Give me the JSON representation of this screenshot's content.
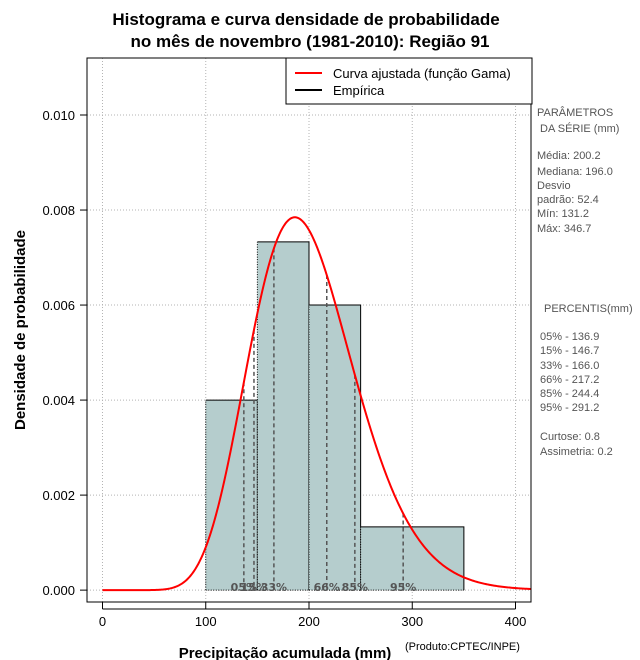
{
  "chart_data": {
    "type": "histogram",
    "title_line1": "Histograma e curva densidade de probabilidade",
    "title_line2": "no mês de novembro (1981-2010): Região 91",
    "xlabel": "Precipitação acumulada (mm)",
    "ylabel": "Densidade de probabilidade",
    "credit": "(Produto:CPTEC/INPE)",
    "xlim": [
      -15,
      415
    ],
    "ylim": [
      -0.00025,
      0.0112
    ],
    "x_ticks": [
      0,
      100,
      200,
      300,
      400
    ],
    "y_ticks": [
      0.0,
      0.002,
      0.004,
      0.006,
      0.008,
      0.01
    ],
    "y_tick_labels": [
      "0.000",
      "0.002",
      "0.004",
      "0.006",
      "0.008",
      "0.010"
    ],
    "bins": [
      {
        "start": 100,
        "end": 150,
        "density": 0.004
      },
      {
        "start": 150,
        "end": 200,
        "density": 0.00733
      },
      {
        "start": 200,
        "end": 250,
        "density": 0.006
      },
      {
        "start": 250,
        "end": 350,
        "density": 0.00133
      }
    ],
    "gamma_fit": {
      "shape": 14.6,
      "scale": 13.7
    },
    "legend": [
      {
        "label": "Curva ajustada (função Gama)",
        "color": "#ff0000"
      },
      {
        "label": "Empírica",
        "color": "#000000"
      }
    ],
    "percentiles": [
      {
        "label": "05%",
        "value": 136.9
      },
      {
        "label": "15%",
        "value": 146.7
      },
      {
        "label": "33%",
        "value": 166.0
      },
      {
        "label": "66%",
        "value": 217.2
      },
      {
        "label": "85%",
        "value": 244.4
      },
      {
        "label": "95%",
        "value": 291.2
      }
    ],
    "bar_fill": "#b5cdcd",
    "curve_color": "#ff0000"
  },
  "side_panel": {
    "params_title1": "PARÂMETROS",
    "params_title2": "DA SÉRIE (mm)",
    "media": "Média:  200.2",
    "mediana": "Mediana:  196.0",
    "desvio1": "Desvio",
    "desvio2": "padrão:  52.4",
    "min": "Mín:  131.2",
    "max": "Máx:  346.7",
    "pct_title": "PERCENTIS(mm)",
    "p05": "05% -   136.9",
    "p15": "15% -   146.7",
    "p33": "33% -   166.0",
    "p66": "66% -   217.2",
    "p85": "85% -   244.4",
    "p95": "95% -   291.2",
    "curtose": "Curtose:  0.8",
    "assimetria": "Assimetria:  0.2"
  }
}
